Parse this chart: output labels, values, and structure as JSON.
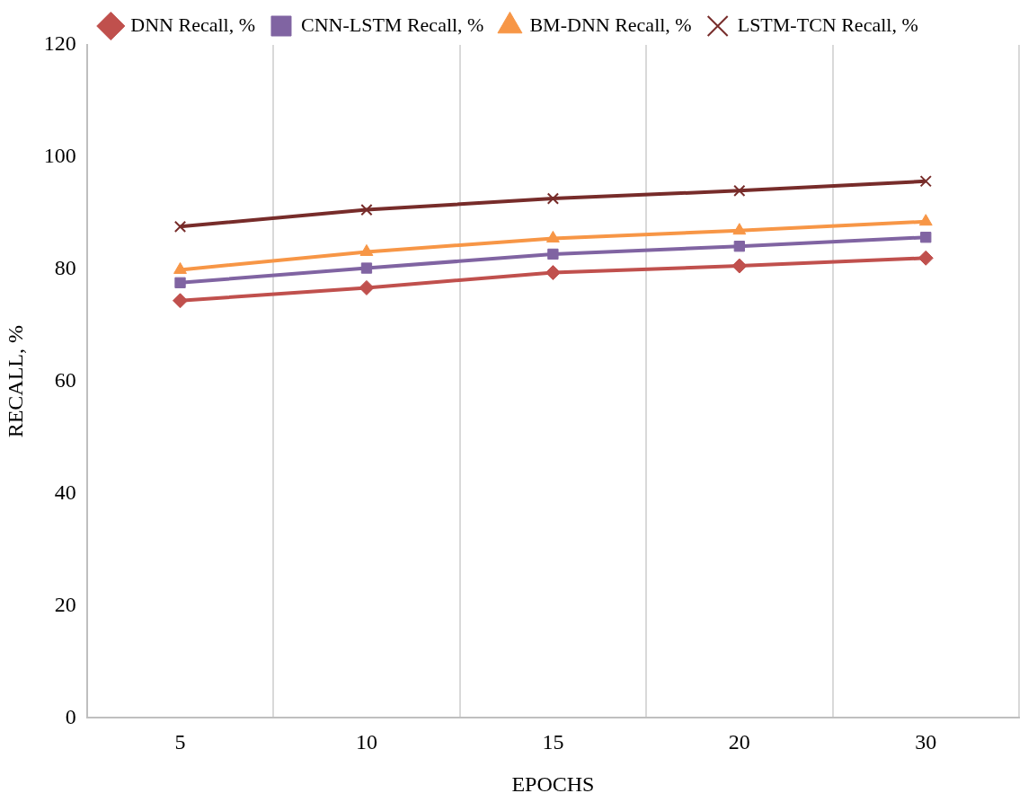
{
  "chart_data": {
    "type": "line",
    "xlabel": "EPOCHS",
    "ylabel": "RECALL, %",
    "categories": [
      "5",
      "10",
      "15",
      "20",
      "30"
    ],
    "series": [
      {
        "name": "DNN Recall, %",
        "color": "#c0504d",
        "marker": "diamond",
        "values": [
          74.4,
          76.7,
          79.4,
          80.6,
          82.0
        ]
      },
      {
        "name": "CNN-LSTM Recall, %",
        "color": "#8064a2",
        "marker": "square",
        "values": [
          77.6,
          80.2,
          82.7,
          84.1,
          85.7
        ]
      },
      {
        "name": "BM-DNN Recall, %",
        "color": "#f79646",
        "marker": "triangle",
        "values": [
          79.9,
          83.1,
          85.5,
          86.9,
          88.5
        ]
      },
      {
        "name": "LSTM-TCN Recall, %",
        "color": "#772c2a",
        "marker": "cross",
        "values": [
          87.6,
          90.6,
          92.6,
          94.0,
          95.7
        ]
      }
    ],
    "ylim": [
      0,
      120
    ],
    "yticks": [
      0,
      20,
      40,
      60,
      80,
      100,
      120
    ],
    "grid": "x",
    "legend": "top"
  }
}
